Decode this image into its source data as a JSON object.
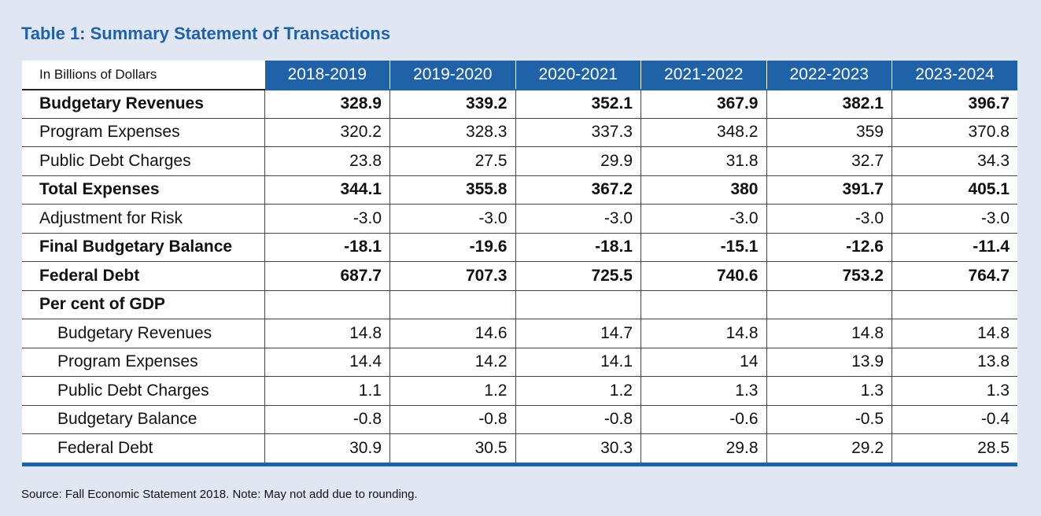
{
  "title": "Table 1: Summary Statement of Transactions",
  "table": {
    "corner_label": "In Billions of Dollars",
    "columns": [
      "2018-2019",
      "2019-2020",
      "2020-2021",
      "2021-2022",
      "2022-2023",
      "2023-2024"
    ],
    "rows": [
      {
        "label": "Budgetary Revenues",
        "bold": true,
        "indent": false,
        "values": [
          "328.9",
          "339.2",
          "352.1",
          "367.9",
          "382.1",
          "396.7"
        ]
      },
      {
        "label": "Program Expenses",
        "bold": false,
        "indent": false,
        "values": [
          "320.2",
          "328.3",
          "337.3",
          "348.2",
          "359",
          "370.8"
        ]
      },
      {
        "label": "Public Debt Charges",
        "bold": false,
        "indent": false,
        "values": [
          "23.8",
          "27.5",
          "29.9",
          "31.8",
          "32.7",
          "34.3"
        ]
      },
      {
        "label": "Total Expenses",
        "bold": true,
        "indent": false,
        "values": [
          "344.1",
          "355.8",
          "367.2",
          "380",
          "391.7",
          "405.1"
        ]
      },
      {
        "label": "Adjustment for Risk",
        "bold": false,
        "indent": false,
        "values": [
          "-3.0",
          "-3.0",
          "-3.0",
          "-3.0",
          "-3.0",
          "-3.0"
        ]
      },
      {
        "label": "Final Budgetary Balance",
        "bold": true,
        "indent": false,
        "values": [
          "-18.1",
          "-19.6",
          "-18.1",
          "-15.1",
          "-12.6",
          "-11.4"
        ]
      },
      {
        "label": "Federal Debt",
        "bold": true,
        "indent": false,
        "values": [
          "687.7",
          "707.3",
          "725.5",
          "740.6",
          "753.2",
          "764.7"
        ]
      },
      {
        "label": "Per cent of GDP",
        "bold": true,
        "indent": false,
        "values": [
          "",
          "",
          "",
          "",
          "",
          ""
        ]
      },
      {
        "label": "Budgetary Revenues",
        "bold": false,
        "indent": true,
        "values": [
          "14.8",
          "14.6",
          "14.7",
          "14.8",
          "14.8",
          "14.8"
        ]
      },
      {
        "label": "Program Expenses",
        "bold": false,
        "indent": true,
        "values": [
          "14.4",
          "14.2",
          "14.1",
          "14",
          "13.9",
          "13.8"
        ]
      },
      {
        "label": "Public Debt Charges",
        "bold": false,
        "indent": true,
        "values": [
          "1.1",
          "1.2",
          "1.2",
          "1.3",
          "1.3",
          "1.3"
        ]
      },
      {
        "label": "Budgetary Balance",
        "bold": false,
        "indent": true,
        "values": [
          "-0.8",
          "-0.8",
          "-0.8",
          "-0.6",
          "-0.5",
          "-0.4"
        ]
      },
      {
        "label": "Federal Debt",
        "bold": false,
        "indent": true,
        "values": [
          "30.9",
          "30.5",
          "30.3",
          "29.8",
          "29.2",
          "28.5"
        ]
      }
    ]
  },
  "source_note": "Source: Fall Economic Statement 2018. Note: May not add due to rounding.",
  "colors": {
    "background": "#e1e6f3",
    "accent": "#1f62a8",
    "header_text": "#ffffff"
  }
}
